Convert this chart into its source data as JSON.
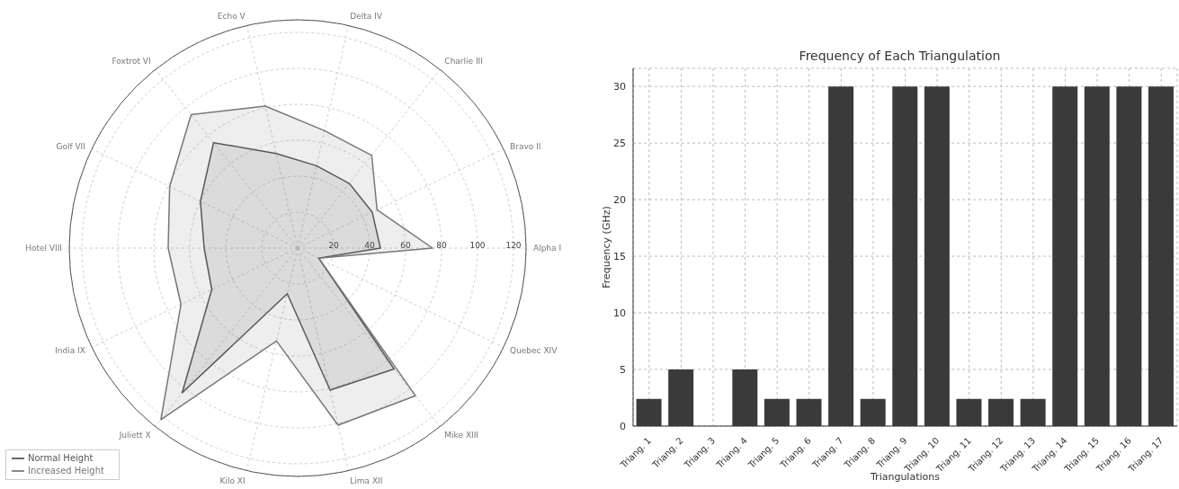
{
  "chart_data": [
    {
      "type": "radar",
      "categories": [
        "Delta IV",
        "Charlie III",
        "Bravo II",
        "Alpha I",
        "Quebec XIV",
        "Mike XIII",
        "Lima XII",
        "Kilo XI",
        "Juliett X",
        "India IX",
        "Hotel VIII",
        "Golf VII",
        "Foxtrot VI",
        "Echo V"
      ],
      "series": [
        {
          "name": "Normal Height",
          "color": "#555555",
          "values": [
            47,
            46,
            46,
            46,
            13,
            86,
            81,
            26,
            103,
            53,
            52,
            60,
            75,
            54
          ]
        },
        {
          "name": "Increased Height",
          "color": "#777777",
          "values": [
            67,
            66,
            49,
            75,
            13,
            105,
            101,
            53,
            122,
            72,
            72,
            79,
            95,
            81
          ]
        }
      ],
      "ylim": [
        0,
        127
      ],
      "yticks": [
        20,
        40,
        60,
        80,
        100,
        120
      ],
      "grid": true,
      "legend": "bottom left"
    },
    {
      "type": "bar",
      "title": "Frequency of Each Triangulation",
      "xlabel": "Triangulations",
      "ylabel": "Frequency (GHz)",
      "categories": [
        "Triang. 1",
        "Triang. 2",
        "Triang. 3",
        "Triang. 4",
        "Triang. 5",
        "Triang. 6",
        "Triang. 7",
        "Triang. 8",
        "Triang. 9",
        "Triang. 10",
        "Triang. 11",
        "Triang. 12",
        "Triang. 13",
        "Triang. 14",
        "Triang. 15",
        "Triang. 16",
        "Triang. 17"
      ],
      "values": [
        2.4,
        5,
        0,
        5,
        2.4,
        2.4,
        30,
        2.4,
        30,
        30,
        2.4,
        2.4,
        2.4,
        30,
        30,
        30,
        30
      ],
      "color": "#3a3a3a",
      "ylim": [
        0,
        31.6
      ],
      "yticks": [
        0,
        5,
        10,
        15,
        20,
        25,
        30
      ],
      "grid": true
    }
  ]
}
